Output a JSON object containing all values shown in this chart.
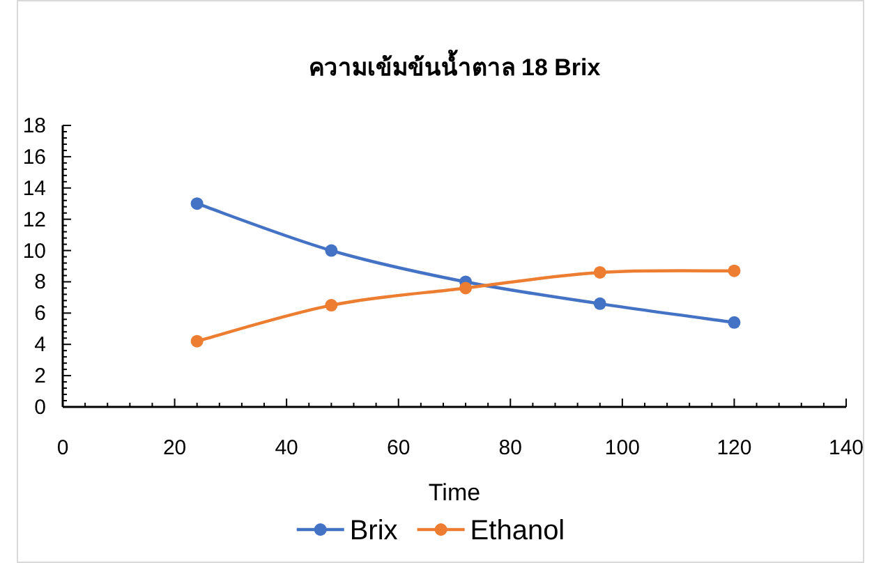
{
  "chart_data": {
    "type": "line",
    "title": "ความเข้มข้นน้ำตาล 18 Brix",
    "xlabel": "Time",
    "x": [
      24,
      48,
      72,
      96,
      120
    ],
    "series": [
      {
        "name": "Brix",
        "color": "#4472c4",
        "values": [
          13,
          10,
          8,
          6.6,
          5.4
        ]
      },
      {
        "name": "Ethanol",
        "color": "#ed7d31",
        "values": [
          4.2,
          6.5,
          7.6,
          8.6,
          8.7
        ]
      }
    ],
    "xlim": [
      0,
      140
    ],
    "xticks": [
      0,
      20,
      40,
      60,
      80,
      100,
      120,
      140
    ],
    "ylim": [
      0,
      18
    ],
    "yticks": [
      0,
      2,
      4,
      6,
      8,
      10,
      12,
      14,
      16,
      18
    ],
    "grid": false,
    "legend": "bottom",
    "marker": "circle",
    "line_style": "solid"
  }
}
